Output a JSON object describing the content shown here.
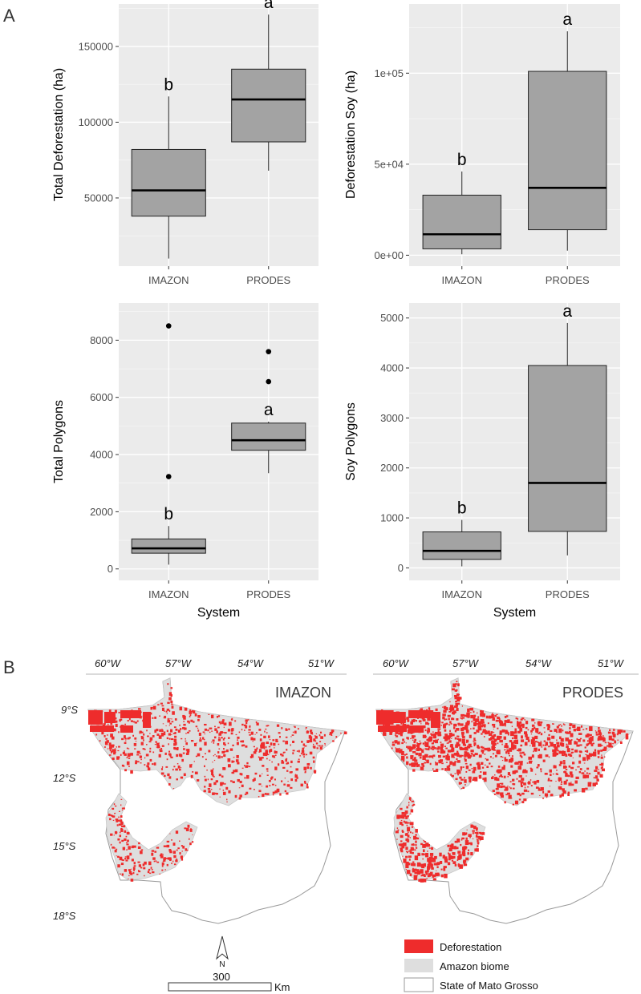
{
  "figure": {
    "panel_a_label": "A",
    "panel_b_label": "B"
  },
  "colors": {
    "panel_bg": "#ebebeb",
    "grid": "#ffffff",
    "box_fill": "#a3a3a3",
    "deforestation": "#ee2c2c",
    "amazon_biome": "#dedede",
    "state_outline": "#9a9a9a"
  },
  "chart_data": [
    {
      "type": "box",
      "ylabel": "Total Deforestation (ha)",
      "xlabel": "",
      "categories": [
        "IMAZON",
        "PRODES"
      ],
      "ylim": [
        5000,
        178000
      ],
      "yticks": [
        50000,
        100000,
        150000
      ],
      "ytick_labels": [
        "50000",
        "100000",
        "150000"
      ],
      "boxes": [
        {
          "category": "IMAZON",
          "min": 10000,
          "q1": 38000,
          "median": 55000,
          "q3": 82000,
          "max": 117000,
          "outliers": [],
          "sig": "b"
        },
        {
          "category": "PRODES",
          "min": 68000,
          "q1": 87000,
          "median": 115000,
          "q3": 135000,
          "max": 171000,
          "outliers": [],
          "sig": "a"
        }
      ]
    },
    {
      "type": "box",
      "ylabel": "Deforestation Soy (ha)",
      "xlabel": "",
      "categories": [
        "IMAZON",
        "PRODES"
      ],
      "ylim": [
        -6000,
        138000
      ],
      "yticks": [
        0,
        50000,
        100000
      ],
      "ytick_labels": [
        "0e+00",
        "5e+04",
        "1e+05"
      ],
      "boxes": [
        {
          "category": "IMAZON",
          "min": 500,
          "q1": 3500,
          "median": 11500,
          "q3": 33000,
          "max": 46000,
          "outliers": [],
          "sig": "b"
        },
        {
          "category": "PRODES",
          "min": 2500,
          "q1": 14000,
          "median": 37000,
          "q3": 101000,
          "max": 123000,
          "outliers": [],
          "sig": "a"
        }
      ]
    },
    {
      "type": "box",
      "ylabel": "Total Polygons",
      "xlabel": "System",
      "categories": [
        "IMAZON",
        "PRODES"
      ],
      "ylim": [
        -400,
        9300
      ],
      "yticks": [
        0,
        2000,
        4000,
        6000,
        8000
      ],
      "ytick_labels": [
        "0",
        "2000",
        "4000",
        "6000",
        "8000"
      ],
      "boxes": [
        {
          "category": "IMAZON",
          "min": 150,
          "q1": 550,
          "median": 720,
          "q3": 1050,
          "max": 1500,
          "outliers": [
            3230,
            8500
          ],
          "sig": "b"
        },
        {
          "category": "PRODES",
          "min": 3350,
          "q1": 4150,
          "median": 4500,
          "q3": 5100,
          "max": 5150,
          "outliers": [
            6550,
            7600
          ],
          "sig": "a"
        }
      ]
    },
    {
      "type": "box",
      "ylabel": "Soy Polygons",
      "xlabel": "System",
      "categories": [
        "IMAZON",
        "PRODES"
      ],
      "ylim": [
        -250,
        5300
      ],
      "yticks": [
        0,
        1000,
        2000,
        3000,
        4000,
        5000
      ],
      "ytick_labels": [
        "0",
        "1000",
        "2000",
        "3000",
        "4000",
        "5000"
      ],
      "boxes": [
        {
          "category": "IMAZON",
          "min": 30,
          "q1": 170,
          "median": 340,
          "q3": 720,
          "max": 960,
          "outliers": [],
          "sig": "b"
        },
        {
          "category": "PRODES",
          "min": 250,
          "q1": 730,
          "median": 1700,
          "q3": 4050,
          "max": 4900,
          "outliers": [],
          "sig": "a"
        }
      ]
    }
  ],
  "maps": [
    {
      "title": "IMAZON",
      "density": "medium"
    },
    {
      "title": "PRODES",
      "density": "high"
    }
  ],
  "map_axes": {
    "lon_labels": [
      "60°W",
      "57°W",
      "54°W",
      "51°W"
    ],
    "lat_labels": [
      "9°S",
      "12°S",
      "15°S",
      "18°S"
    ]
  },
  "legend": {
    "items": [
      {
        "label": "Deforestation",
        "swatch": "deforestation"
      },
      {
        "label": "Amazon biome",
        "swatch": "amazon_biome"
      },
      {
        "label": "State of Mato Grosso",
        "swatch": "state"
      }
    ]
  },
  "scale_bar": {
    "north_label": "N",
    "distance": "300",
    "unit": "Km"
  }
}
